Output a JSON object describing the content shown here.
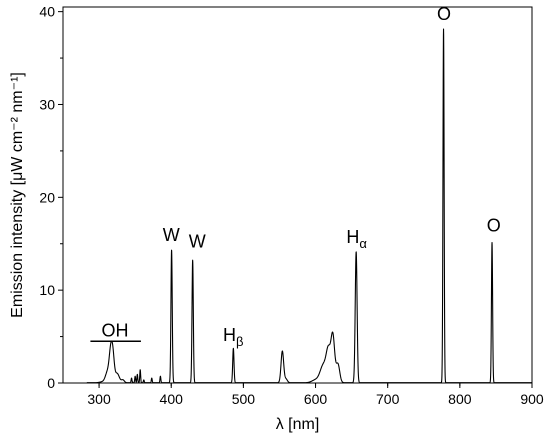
{
  "chart_data": {
    "type": "line",
    "title": "",
    "xlabel": "λ [nm]",
    "ylabel": "Emission intensity [μW cm⁻² nm⁻¹]",
    "xlim": [
      250,
      900
    ],
    "ylim": [
      0,
      40.5
    ],
    "xticks": [
      300,
      400,
      500,
      600,
      700,
      800,
      900
    ],
    "yticks": [
      0,
      10,
      20,
      30,
      40
    ],
    "grid": false,
    "legend": "none",
    "series": [
      {
        "color": "#000000",
        "peaks": [
          {
            "x": 305,
            "y": 0.1,
            "w": 4
          },
          {
            "x": 312,
            "y": 1.2,
            "w": 3
          },
          {
            "x": 316,
            "y": 2.7,
            "w": 2
          },
          {
            "x": 319,
            "y": 2.9,
            "w": 2
          },
          {
            "x": 325,
            "y": 1.0,
            "w": 3
          },
          {
            "x": 333,
            "y": 0.3,
            "w": 2
          },
          {
            "x": 345,
            "y": 0.5,
            "w": 0.6
          },
          {
            "x": 350,
            "y": 0.7,
            "w": 0.6
          },
          {
            "x": 353,
            "y": 0.9,
            "w": 0.6
          },
          {
            "x": 357,
            "y": 1.4,
            "w": 0.6
          },
          {
            "x": 362,
            "y": 0.3,
            "w": 0.6
          },
          {
            "x": 373,
            "y": 0.5,
            "w": 0.6
          },
          {
            "x": 385,
            "y": 0.7,
            "w": 0.6
          },
          {
            "x": 400.5,
            "y": 14.3,
            "w": 0.9
          },
          {
            "x": 429.7,
            "y": 13.2,
            "w": 0.9
          },
          {
            "x": 486.1,
            "y": 3.7,
            "w": 0.9
          },
          {
            "x": 554,
            "y": 3.4,
            "w": 1.8
          },
          {
            "x": 559,
            "y": 0.4,
            "w": 2
          },
          {
            "x": 600,
            "y": 0.3,
            "w": 5
          },
          {
            "x": 611,
            "y": 1.9,
            "w": 4.5
          },
          {
            "x": 618,
            "y": 3.2,
            "w": 3
          },
          {
            "x": 624,
            "y": 4.9,
            "w": 2.5
          },
          {
            "x": 631,
            "y": 2.0,
            "w": 2.5
          },
          {
            "x": 656.3,
            "y": 14.1,
            "w": 1.3
          },
          {
            "x": 777.4,
            "y": 38.1,
            "w": 0.8
          },
          {
            "x": 844.6,
            "y": 15.1,
            "w": 0.8
          }
        ]
      }
    ],
    "annotations": [
      {
        "id": "oh",
        "text": "OH",
        "sub": "",
        "x": 322,
        "y": 5.0
      },
      {
        "id": "w1",
        "text": "W",
        "sub": "",
        "x": 400,
        "y": 15.3
      },
      {
        "id": "w2",
        "text": "W",
        "sub": "",
        "x": 436,
        "y": 14.6
      },
      {
        "id": "hb",
        "text": "H",
        "sub": "β",
        "x": 486,
        "y": 4.5
      },
      {
        "id": "ha",
        "text": "H",
        "sub": "α",
        "x": 657,
        "y": 15.1
      },
      {
        "id": "o1",
        "text": "O",
        "sub": "",
        "x": 778,
        "y": 39.1
      },
      {
        "id": "o2",
        "text": "O",
        "sub": "",
        "x": 847,
        "y": 16.3
      }
    ],
    "oh_bar": {
      "x1": 288,
      "x2": 358,
      "y": 4.5
    }
  }
}
